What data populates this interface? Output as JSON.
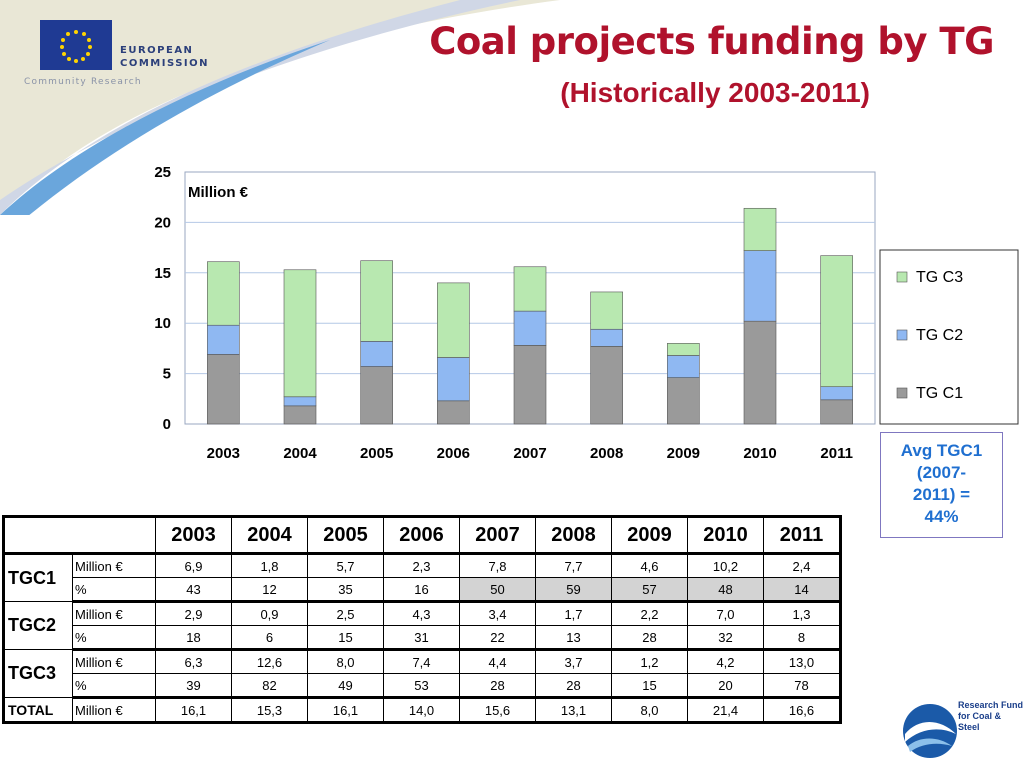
{
  "header": {
    "org_name": "EUROPEAN COMMISSION",
    "org_sub": "Community Research",
    "title": "Coal projects funding by TG",
    "subtitle": "(Historically 2003-2011)"
  },
  "chart_data": {
    "type": "bar",
    "stacked": true,
    "categories": [
      "2003",
      "2004",
      "2005",
      "2006",
      "2007",
      "2008",
      "2009",
      "2010",
      "2011"
    ],
    "series": [
      {
        "name": "TG C1",
        "values": [
          6.9,
          1.8,
          5.7,
          2.3,
          7.8,
          7.7,
          4.6,
          10.2,
          2.4
        ],
        "color": "#9a9a9a"
      },
      {
        "name": "TG C2",
        "values": [
          2.9,
          0.9,
          2.5,
          4.3,
          3.4,
          1.7,
          2.2,
          7.0,
          1.3
        ],
        "color": "#8fb8f2"
      },
      {
        "name": "TG C3",
        "values": [
          6.3,
          12.6,
          8.0,
          7.4,
          4.4,
          3.7,
          1.2,
          4.2,
          13.0
        ],
        "color": "#b8e8b0"
      }
    ],
    "ylabel": "Million €",
    "ylim": [
      0,
      25
    ],
    "yticks": [
      "0",
      "5",
      "10",
      "15",
      "20",
      "25"
    ],
    "grid": true,
    "legend": "right"
  },
  "note": {
    "lines": [
      "Avg TGC1",
      "(2007-",
      "2011) =",
      "44%"
    ]
  },
  "table": {
    "years": [
      "2003",
      "2004",
      "2005",
      "2006",
      "2007",
      "2008",
      "2009",
      "2010",
      "2011"
    ],
    "groups": [
      {
        "label": "TGC1",
        "rows": [
          {
            "unit": "Million €",
            "values": [
              "6,9",
              "1,8",
              "5,7",
              "2,3",
              "7,8",
              "7,7",
              "4,6",
              "10,2",
              "2,4"
            ]
          },
          {
            "unit": "%",
            "values": [
              "43",
              "12",
              "35",
              "16",
              "50",
              "59",
              "57",
              "48",
              "14"
            ]
          }
        ]
      },
      {
        "label": "TGC2",
        "rows": [
          {
            "unit": "Million €",
            "values": [
              "2,9",
              "0,9",
              "2,5",
              "4,3",
              "3,4",
              "1,7",
              "2,2",
              "7,0",
              "1,3"
            ]
          },
          {
            "unit": "%",
            "values": [
              "18",
              "6",
              "15",
              "31",
              "22",
              "13",
              "28",
              "32",
              "8"
            ]
          }
        ]
      },
      {
        "label": "TGC3",
        "rows": [
          {
            "unit": "Million €",
            "values": [
              "6,3",
              "12,6",
              "8,0",
              "7,4",
              "4,4",
              "3,7",
              "1,2",
              "4,2",
              "13,0"
            ]
          },
          {
            "unit": "%",
            "values": [
              "39",
              "82",
              "49",
              "53",
              "28",
              "28",
              "15",
              "20",
              "78"
            ]
          }
        ]
      }
    ],
    "total": {
      "label": "TOTAL",
      "unit": "Million €",
      "values": [
        "16,1",
        "15,3",
        "16,1",
        "14,0",
        "15,6",
        "13,1",
        "8,0",
        "21,4",
        "16,6"
      ]
    }
  },
  "footer": {
    "logo_text": [
      "Research Fund",
      "for Coal & Steel"
    ]
  }
}
